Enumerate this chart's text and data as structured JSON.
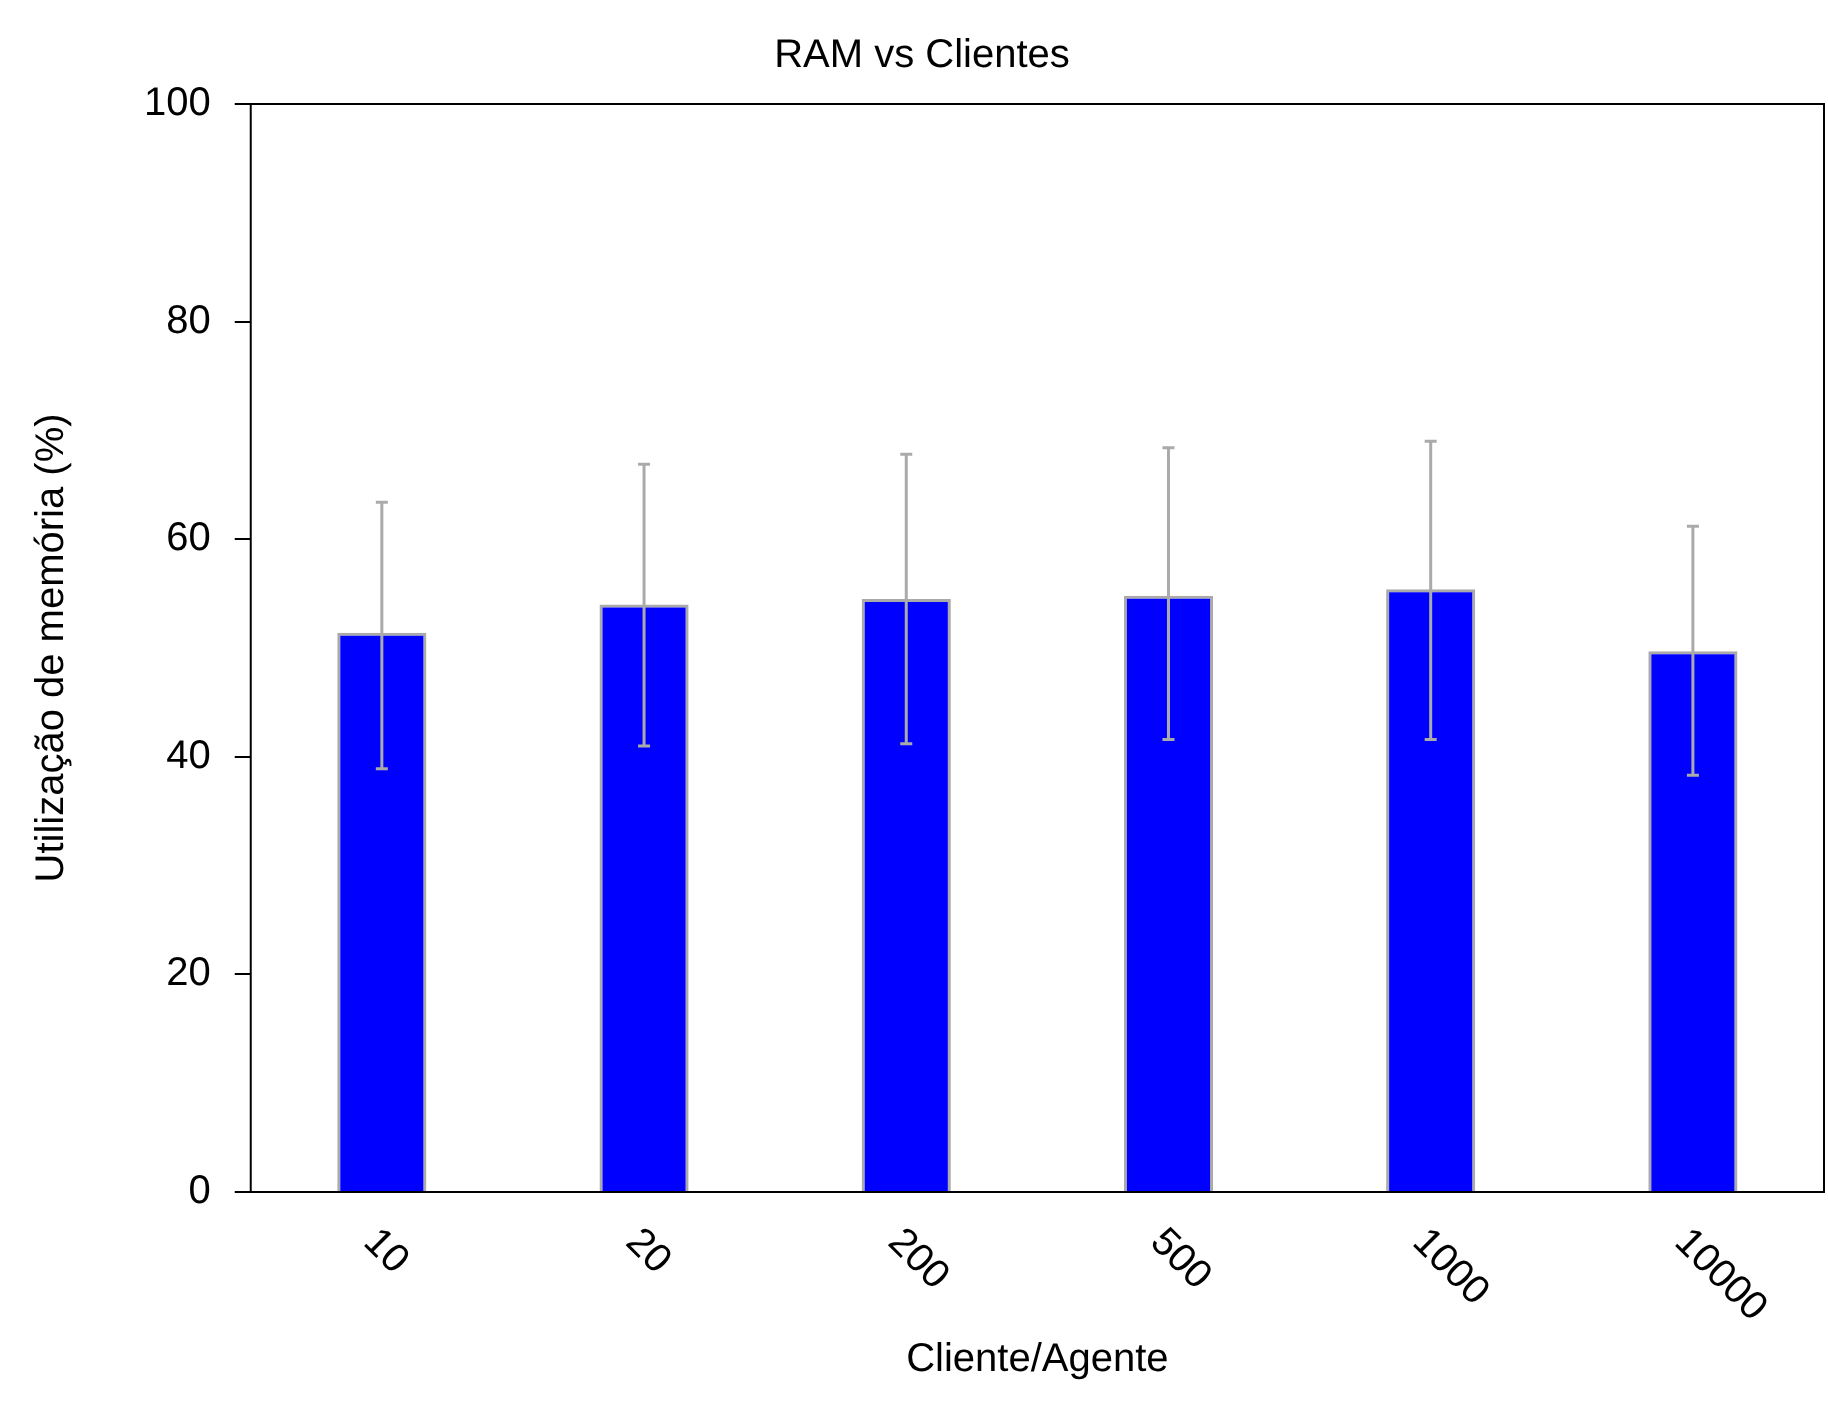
{
  "chart_data": {
    "type": "bar",
    "title": "RAM vs Clientes",
    "xlabel": "Cliente/Agente",
    "ylabel": "Utilização de memória (%)",
    "categories": [
      "10",
      "20",
      "200",
      "500",
      "1000",
      "10000"
    ],
    "values": [
      51.4,
      54.0,
      54.5,
      54.8,
      55.4,
      49.7
    ],
    "errors": [
      [
        38.9,
        63.4
      ],
      [
        41.0,
        66.9
      ],
      [
        41.2,
        67.8
      ],
      [
        41.6,
        68.4
      ],
      [
        41.6,
        69.0
      ],
      [
        38.3,
        61.2
      ]
    ],
    "color": "#0000ff",
    "ylim": [
      0,
      100
    ],
    "yticks": [
      0,
      20,
      40,
      60,
      80,
      100
    ],
    "grid": false,
    "legend": false
  }
}
